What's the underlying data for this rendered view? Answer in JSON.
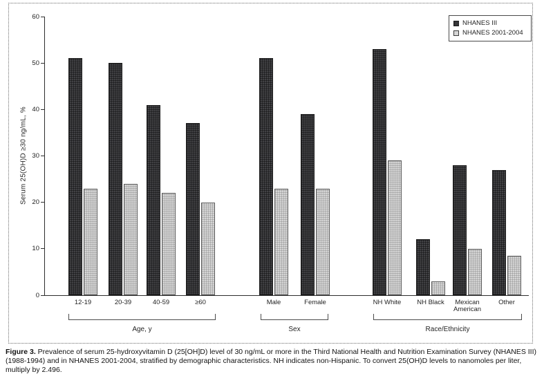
{
  "figure": {
    "caption_label": "Figure 3.",
    "caption_text": " Prevalence of serum 25-hydroxyvitamin D (25[OH]D) level of 30 ng/mL or more in the Third National Health and Nutrition Examination Survey (NHANES III) (1988-1994) and in NHANES 2001-2004, stratified by demographic characteristics. NH indicates non-Hispanic. To convert 25(OH)D levels to nanomoles per liter, multiply by 2.496."
  },
  "chart_data": {
    "type": "bar",
    "title": "",
    "ylabel": "Serum 25(OH)D ≥30 ng/mL, %",
    "xlabel": "",
    "ylim": [
      0,
      60
    ],
    "yticks": [
      0,
      10,
      20,
      30,
      40,
      50,
      60
    ],
    "grid": false,
    "legend_position": "top-right",
    "series_names": [
      "NHANES III",
      "NHANES 2001-2004"
    ],
    "colors": {
      "nhanes_iii": "#424245",
      "nhanes_2001_2004": "#d6d6d6"
    },
    "groups": [
      {
        "label": "Age, y",
        "categories": [
          "12-19",
          "20-39",
          "40-59",
          "≥60"
        ],
        "series": [
          {
            "name": "NHANES III",
            "values": [
              51,
              50,
              41,
              37
            ]
          },
          {
            "name": "NHANES 2001-2004",
            "values": [
              23,
              24,
              22,
              20
            ]
          }
        ]
      },
      {
        "label": "Sex",
        "categories": [
          "Male",
          "Female"
        ],
        "series": [
          {
            "name": "NHANES III",
            "values": [
              51,
              39
            ]
          },
          {
            "name": "NHANES 2001-2004",
            "values": [
              23,
              23
            ]
          }
        ]
      },
      {
        "label": "Race/Ethnicity",
        "categories": [
          "NH White",
          "NH Black",
          "Mexican American",
          "Other"
        ],
        "series": [
          {
            "name": "NHANES III",
            "values": [
              53,
              12,
              28,
              27
            ]
          },
          {
            "name": "NHANES 2001-2004",
            "values": [
              29,
              3,
              10,
              8.5
            ]
          }
        ]
      }
    ]
  }
}
